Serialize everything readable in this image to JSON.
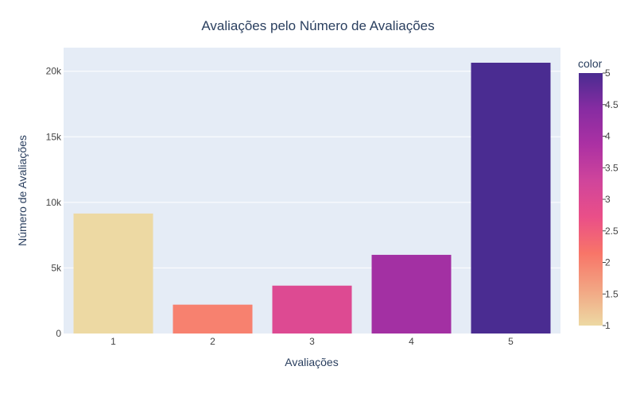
{
  "chart_data": {
    "type": "bar",
    "title": "Avaliações pelo Número de Avaliações",
    "xlabel": "Avaliações",
    "ylabel": "Número de Avaliações",
    "categories": [
      "1",
      "2",
      "3",
      "4",
      "5"
    ],
    "values": [
      9150,
      2200,
      3650,
      6000,
      20650
    ],
    "ylim": [
      0,
      21800
    ],
    "yticks": [
      0,
      5000,
      10000,
      15000,
      20000
    ],
    "ytick_labels": [
      "0",
      "5k",
      "10k",
      "15k",
      "20k"
    ],
    "grid": true,
    "colorbar": {
      "title": "color",
      "min": 1,
      "max": 5,
      "ticks": [
        1,
        1.5,
        2,
        2.5,
        3,
        3.5,
        4,
        4.5,
        5
      ],
      "tick_labels": [
        "1",
        "1.5",
        "2",
        "2.5",
        "3",
        "3.5",
        "4",
        "4.5",
        "5"
      ],
      "colorscale": [
        "#EDD9A3",
        "#F2A583",
        "#F87568",
        "#EA4F88",
        "#D0459B",
        "#AC31A3",
        "#872CA2",
        "#4A2C91"
      ]
    },
    "colors": {
      "plot_bg": "#E5ECF6",
      "grid": "#FFFFFF",
      "text": "#2A3F5F",
      "tick_text": "#444444"
    }
  }
}
